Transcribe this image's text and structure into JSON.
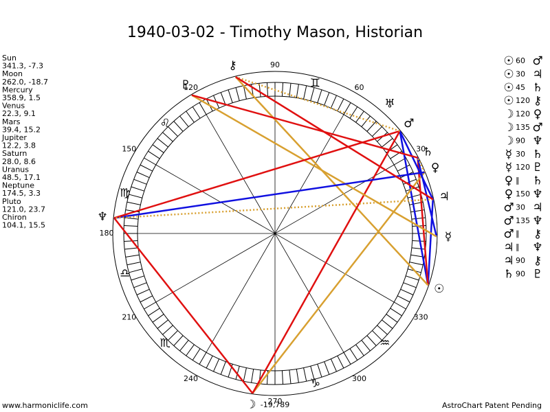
{
  "title": "1940-03-02 - Timothy Mason, Historian",
  "planets": [
    {
      "name": "Sun",
      "glyph": "☉",
      "coords": "341.3, -7.3"
    },
    {
      "name": "Moon",
      "glyph": "☽",
      "coords": "262.0, -18.7"
    },
    {
      "name": "Mercury",
      "glyph": "☿",
      "coords": "358.9, 1.5"
    },
    {
      "name": "Venus",
      "glyph": "♀",
      "coords": "22.3, 9.1"
    },
    {
      "name": "Mars",
      "glyph": "♂",
      "coords": "39.4, 15.2"
    },
    {
      "name": "Jupiter",
      "glyph": "♃",
      "coords": "12.2, 3.8"
    },
    {
      "name": "Saturn",
      "glyph": "♄",
      "coords": "28.0, 8.6"
    },
    {
      "name": "Uranus",
      "glyph": "♅",
      "coords": "48.5, 17.1"
    },
    {
      "name": "Neptune",
      "glyph": "♆",
      "coords": "174.5, 3.3"
    },
    {
      "name": "Pluto",
      "glyph": "♇",
      "coords": "121.0, 23.7"
    },
    {
      "name": "Chiron",
      "glyph": "⚷",
      "coords": "104.1, 15.5"
    }
  ],
  "aspects": [
    {
      "from": "☉",
      "aspect": 60,
      "to": "♂",
      "color": "#1010e0"
    },
    {
      "from": "☉",
      "aspect": 30,
      "to": "♃",
      "color": "#1010e0"
    },
    {
      "from": "☉",
      "aspect": 45,
      "to": "♄",
      "color": "#e01010"
    },
    {
      "from": "☉",
      "aspect": 120,
      "to": "⚷",
      "color": "#d8a030"
    },
    {
      "from": "☽",
      "aspect": 120,
      "to": "♀",
      "color": "#d8a030"
    },
    {
      "from": "☽",
      "aspect": 135,
      "to": "♂",
      "color": "#e01010"
    },
    {
      "from": "☽",
      "aspect": 90,
      "to": "♆",
      "color": "#e01010"
    },
    {
      "from": "☿",
      "aspect": 30,
      "to": "♄",
      "color": "#1010e0"
    },
    {
      "from": "☿",
      "aspect": 120,
      "to": "♇",
      "color": "#d8a030"
    },
    {
      "from": "♀",
      "aspect": "∥",
      "to": "♄",
      "color": "#d8a030",
      "dashed": true
    },
    {
      "from": "♀",
      "aspect": 150,
      "to": "♆",
      "color": "#1010e0"
    },
    {
      "from": "♂",
      "aspect": 30,
      "to": "♃",
      "color": "#1010e0"
    },
    {
      "from": "♂",
      "aspect": 135,
      "to": "♆",
      "color": "#e01010"
    },
    {
      "from": "♂",
      "aspect": "∥",
      "to": "⚷",
      "color": "#d8a030",
      "dashed": true
    },
    {
      "from": "♃",
      "aspect": "∥",
      "to": "♆",
      "color": "#d8a030",
      "dashed": true
    },
    {
      "from": "♃",
      "aspect": 90,
      "to": "⚷",
      "color": "#e01010"
    },
    {
      "from": "♄",
      "aspect": 90,
      "to": "♇",
      "color": "#e01010"
    }
  ],
  "signs": [
    null,
    null,
    "♊",
    null,
    "♌",
    "♍",
    "♎",
    "♏",
    null,
    "♑",
    "♒",
    null
  ],
  "degree_labels": [
    90,
    60,
    30,
    330,
    300,
    270,
    240,
    210,
    180,
    150,
    120
  ],
  "below_270": "-19,789",
  "footer_left": "www.harmoniclife.com",
  "footer_right": "AstroChart Patent Pending"
}
